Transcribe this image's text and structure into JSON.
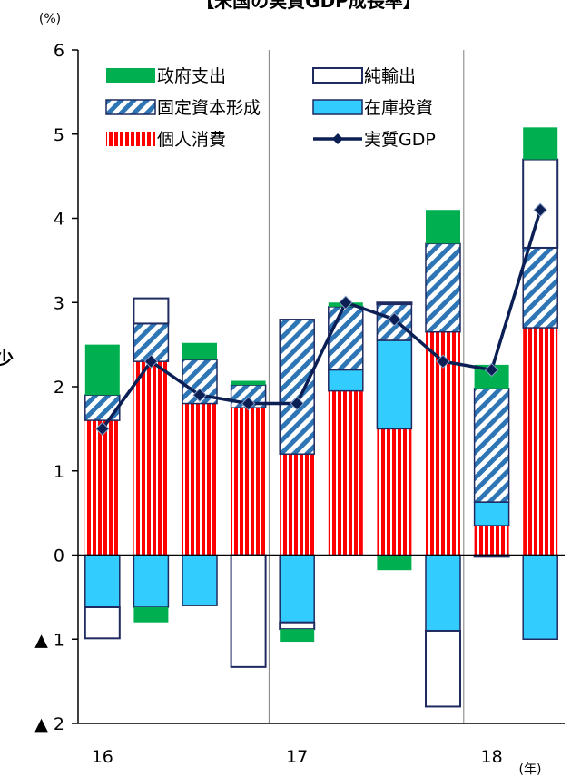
{
  "title": "【米国の実質GDP成長率】",
  "side_char": "少",
  "y_unit": "(%)",
  "x_unit": "(年)",
  "chart_data": {
    "type": "bar",
    "stacked": true,
    "title": "【米国の実質GDP成長率】",
    "xlabel": "",
    "ylabel": "",
    "y_unit": "(%)",
    "x_unit": "(年)",
    "ylim": [
      -2,
      6
    ],
    "y_ticks": [
      {
        "value": 6,
        "label": "6"
      },
      {
        "value": 5,
        "label": "5"
      },
      {
        "value": 4,
        "label": "4"
      },
      {
        "value": 3,
        "label": "3"
      },
      {
        "value": 2,
        "label": "2"
      },
      {
        "value": 1,
        "label": "1"
      },
      {
        "value": 0,
        "label": "0"
      },
      {
        "value": -1,
        "label": "▲ 1"
      },
      {
        "value": -2,
        "label": "▲ 2"
      }
    ],
    "x_year_labels": [
      {
        "label": "16",
        "index": 0
      },
      {
        "label": "17",
        "index": 4
      },
      {
        "label": "18",
        "index": 8
      }
    ],
    "year_dividers_after": [
      3,
      7
    ],
    "legend_position": "top-left",
    "legend": [
      {
        "key": "gov",
        "label": "政府支出"
      },
      {
        "key": "net",
        "label": "純輸出"
      },
      {
        "key": "fixed",
        "label": "固定資本形成"
      },
      {
        "key": "inv",
        "label": "在庫投資"
      },
      {
        "key": "cons",
        "label": "個人消費"
      },
      {
        "key": "gdp",
        "label": "実質GDP"
      }
    ],
    "colors": {
      "gov": "#00b050",
      "net_fill": "#ffffff",
      "net_border": "#1f2a60",
      "fixed_stripe": "#2e75b6",
      "inv": "#33ccff",
      "cons_stripe": "#ff0000",
      "gdp_line": "#0c1f55",
      "axis": "#000000",
      "divider": "#808080"
    },
    "stack_order": [
      "cons",
      "inv",
      "fixed",
      "net",
      "gov"
    ],
    "series": [
      {
        "key": "cons",
        "values": [
          1.6,
          2.3,
          1.8,
          1.75,
          1.2,
          1.95,
          1.5,
          2.65,
          0.35,
          2.7
        ]
      },
      {
        "key": "inv",
        "values": [
          -0.62,
          -0.62,
          -0.6,
          0,
          -0.8,
          0.25,
          1.05,
          -0.9,
          0.28,
          -1.0
        ]
      },
      {
        "key": "fixed",
        "values": [
          0.3,
          0.45,
          0.52,
          0.27,
          1.6,
          0.75,
          0.43,
          1.05,
          1.35,
          0.95
        ]
      },
      {
        "key": "net",
        "values": [
          -0.37,
          0.3,
          0,
          -1.33,
          -0.08,
          0,
          0.02,
          -0.9,
          -0.02,
          1.05
        ]
      },
      {
        "key": "gov",
        "values": [
          0.6,
          -0.18,
          0.2,
          0.05,
          -0.15,
          0.05,
          -0.18,
          0.4,
          0.28,
          0.38
        ]
      }
    ],
    "gdp": {
      "key": "gdp",
      "name": "実質GDP",
      "values": [
        1.5,
        2.3,
        1.9,
        1.8,
        1.8,
        3.0,
        2.8,
        2.3,
        2.2,
        4.1
      ]
    }
  }
}
